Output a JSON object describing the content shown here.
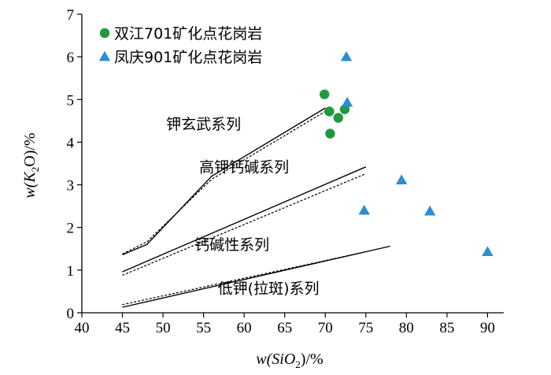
{
  "colors": {
    "circle_series": "#1f9a3c",
    "triangle_series": "#2a8fd0",
    "lines": "#000000"
  },
  "chart_data": {
    "type": "scatter",
    "xlabel": {
      "pre": "w(SiO",
      "sub": "2",
      "post": ")/%"
    },
    "ylabel": {
      "pre": "w(K",
      "sub": "2",
      "post": "O)/%"
    },
    "xlim": [
      40,
      92
    ],
    "ylim": [
      0,
      7
    ],
    "xticks": [
      "40",
      "45",
      "50",
      "55",
      "60",
      "65",
      "70",
      "75",
      "80",
      "85",
      "90"
    ],
    "yticks": [
      "0",
      "1",
      "2",
      "3",
      "4",
      "5",
      "6",
      "7"
    ],
    "legend_position": "top-left",
    "series": [
      {
        "name": "双江701矿化点花岗岩",
        "marker": "circle",
        "points": [
          [
            69.9,
            5.12
          ],
          [
            70.5,
            4.72
          ],
          [
            70.6,
            4.2
          ],
          [
            71.6,
            4.57
          ],
          [
            72.4,
            4.77
          ]
        ]
      },
      {
        "name": "凤庆901矿化点花岗岩",
        "marker": "triangle",
        "points": [
          [
            72.6,
            6.0
          ],
          [
            72.7,
            4.93
          ],
          [
            74.8,
            2.4
          ],
          [
            79.4,
            3.11
          ],
          [
            82.9,
            2.38
          ],
          [
            90.0,
            1.43
          ]
        ]
      }
    ],
    "boundary_lines": [
      {
        "style": "solid",
        "points": [
          [
            45,
            1.36
          ],
          [
            48,
            1.6
          ],
          [
            56,
            3.2
          ],
          [
            70,
            4.8
          ]
        ]
      },
      {
        "style": "dashed",
        "points": [
          [
            45,
            1.38
          ],
          [
            48,
            1.66
          ],
          [
            56,
            3.13
          ],
          [
            70,
            4.72
          ]
        ]
      },
      {
        "style": "solid",
        "points": [
          [
            45,
            0.96
          ],
          [
            75,
            3.42
          ]
        ]
      },
      {
        "style": "dashed",
        "points": [
          [
            45,
            0.88
          ],
          [
            75,
            3.26
          ]
        ]
      },
      {
        "style": "solid",
        "points": [
          [
            45,
            0.13
          ],
          [
            78,
            1.56
          ]
        ]
      },
      {
        "style": "dashed",
        "points": [
          [
            45,
            0.19
          ],
          [
            75,
            1.43
          ]
        ]
      }
    ],
    "field_labels": [
      {
        "text": "钾玄武系列",
        "x": 55.0,
        "y": 4.3
      },
      {
        "text": "高钾钙碱系列",
        "x": 60.0,
        "y": 3.3
      },
      {
        "text": "钙碱性系列",
        "x": 58.5,
        "y": 1.48
      },
      {
        "text": "低钾(拉斑)系列",
        "x": 63.0,
        "y": 0.45
      }
    ]
  }
}
